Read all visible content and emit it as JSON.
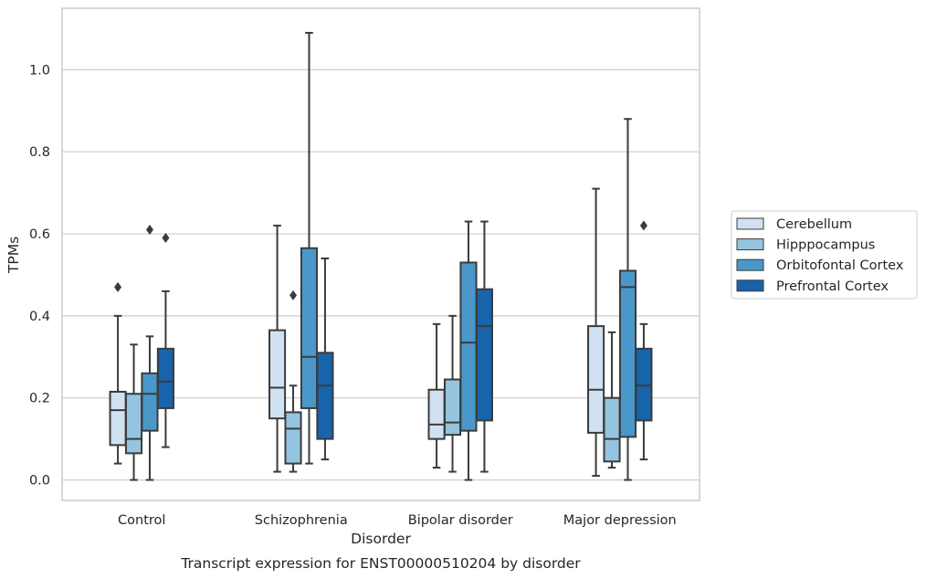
{
  "chart_data": {
    "type": "box",
    "xlabel": "Disorder",
    "ylabel": "TPMs",
    "caption": "Transcript expression for ENST00000510204 by disorder",
    "ylim": [
      -0.05,
      1.15
    ],
    "yticks": [
      "0.0",
      "0.2",
      "0.4",
      "0.6",
      "0.8",
      "1.0"
    ],
    "ytick_values": [
      0.0,
      0.2,
      0.4,
      0.6,
      0.8,
      1.0
    ],
    "grid": "horizontal",
    "legend_position": "right",
    "categories": [
      "Control",
      "Schizophrenia",
      "Bipolar disorder",
      "Major depression"
    ],
    "series": [
      {
        "name": "Cerebellum",
        "color": "#d0e1f2",
        "boxes": [
          {
            "whisker_low": 0.04,
            "q1": 0.085,
            "median": 0.17,
            "q3": 0.215,
            "whisker_high": 0.4,
            "outliers": [
              0.47
            ]
          },
          {
            "whisker_low": 0.02,
            "q1": 0.15,
            "median": 0.225,
            "q3": 0.365,
            "whisker_high": 0.62,
            "outliers": []
          },
          {
            "whisker_low": 0.03,
            "q1": 0.1,
            "median": 0.135,
            "q3": 0.22,
            "whisker_high": 0.38,
            "outliers": []
          },
          {
            "whisker_low": 0.01,
            "q1": 0.115,
            "median": 0.22,
            "q3": 0.375,
            "whisker_high": 0.71,
            "outliers": []
          }
        ]
      },
      {
        "name": "Hipppocampus",
        "color": "#94c4df",
        "boxes": [
          {
            "whisker_low": 0.0,
            "q1": 0.065,
            "median": 0.1,
            "q3": 0.21,
            "whisker_high": 0.33,
            "outliers": []
          },
          {
            "whisker_low": 0.02,
            "q1": 0.04,
            "median": 0.125,
            "q3": 0.165,
            "whisker_high": 0.23,
            "outliers": [
              0.45
            ]
          },
          {
            "whisker_low": 0.02,
            "q1": 0.11,
            "median": 0.14,
            "q3": 0.245,
            "whisker_high": 0.4,
            "outliers": []
          },
          {
            "whisker_low": 0.03,
            "q1": 0.045,
            "median": 0.1,
            "q3": 0.2,
            "whisker_high": 0.36,
            "outliers": []
          }
        ]
      },
      {
        "name": "Orbitofontal Cortex",
        "color": "#4a98c9",
        "boxes": [
          {
            "whisker_low": 0.0,
            "q1": 0.12,
            "median": 0.21,
            "q3": 0.26,
            "whisker_high": 0.35,
            "outliers": [
              0.61
            ]
          },
          {
            "whisker_low": 0.04,
            "q1": 0.175,
            "median": 0.3,
            "q3": 0.565,
            "whisker_high": 1.09,
            "outliers": []
          },
          {
            "whisker_low": 0.0,
            "q1": 0.12,
            "median": 0.335,
            "q3": 0.53,
            "whisker_high": 0.63,
            "outliers": []
          },
          {
            "whisker_low": 0.0,
            "q1": 0.105,
            "median": 0.47,
            "q3": 0.51,
            "whisker_high": 0.88,
            "outliers": []
          }
        ]
      },
      {
        "name": "Prefrontal Cortex",
        "color": "#1764ab",
        "boxes": [
          {
            "whisker_low": 0.08,
            "q1": 0.175,
            "median": 0.24,
            "q3": 0.32,
            "whisker_high": 0.46,
            "outliers": [
              0.59
            ]
          },
          {
            "whisker_low": 0.05,
            "q1": 0.1,
            "median": 0.23,
            "q3": 0.31,
            "whisker_high": 0.54,
            "outliers": []
          },
          {
            "whisker_low": 0.02,
            "q1": 0.145,
            "median": 0.375,
            "q3": 0.465,
            "whisker_high": 0.63,
            "outliers": []
          },
          {
            "whisker_low": 0.05,
            "q1": 0.145,
            "median": 0.23,
            "q3": 0.32,
            "whisker_high": 0.38,
            "outliers": [
              0.62
            ]
          }
        ]
      }
    ]
  }
}
